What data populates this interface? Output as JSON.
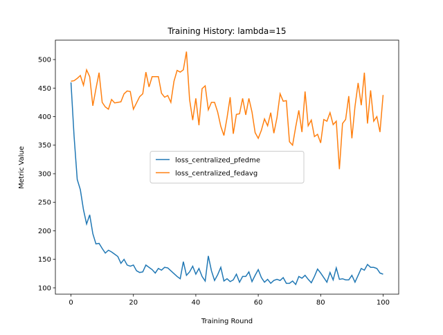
{
  "chart_data": {
    "type": "line",
    "title": "Training History: lambda=15",
    "x_label": "Training Round",
    "y_label": "Metric Value",
    "x": [
      0,
      1,
      2,
      3,
      4,
      5,
      6,
      7,
      8,
      9,
      10,
      11,
      12,
      13,
      14,
      15,
      16,
      17,
      18,
      19,
      20,
      21,
      22,
      23,
      24,
      25,
      26,
      27,
      28,
      29,
      30,
      31,
      32,
      33,
      34,
      35,
      36,
      37,
      38,
      39,
      40,
      41,
      42,
      43,
      44,
      45,
      46,
      47,
      48,
      49,
      50,
      51,
      52,
      53,
      54,
      55,
      56,
      57,
      58,
      59,
      60,
      61,
      62,
      63,
      64,
      65,
      66,
      67,
      68,
      69,
      70,
      71,
      72,
      73,
      74,
      75,
      76,
      77,
      78,
      79,
      80,
      81,
      82,
      83,
      84,
      85,
      86,
      87,
      88,
      89,
      90,
      91,
      92,
      93,
      94,
      95,
      96,
      97,
      98,
      99,
      100
    ],
    "series": [
      {
        "name": "loss_centralized_pfedme",
        "color": "#1f77b4",
        "values": [
          460,
          365,
          290,
          272,
          237,
          212,
          228,
          195,
          177,
          178,
          169,
          161,
          166,
          163,
          159,
          155,
          143,
          150,
          140,
          138,
          140,
          130,
          127,
          128,
          140,
          136,
          132,
          126,
          134,
          131,
          136,
          135,
          130,
          125,
          120,
          116,
          146,
          122,
          128,
          138,
          124,
          134,
          120,
          112,
          156,
          130,
          113,
          123,
          136,
          112,
          116,
          111,
          114,
          124,
          110,
          120,
          120,
          128,
          111,
          122,
          132,
          118,
          110,
          115,
          108,
          113,
          115,
          113,
          118,
          108,
          108,
          112,
          106,
          120,
          117,
          122,
          115,
          109,
          120,
          133,
          126,
          118,
          110,
          127,
          114,
          135,
          115,
          116,
          114,
          114,
          122,
          110,
          122,
          134,
          131,
          141,
          136,
          136,
          134,
          126,
          124
        ]
      },
      {
        "name": "loss_centralized_fedavg",
        "color": "#ff7f0e",
        "values": [
          462,
          463,
          467,
          472,
          455,
          482,
          470,
          419,
          449,
          477,
          425,
          417,
          413,
          430,
          424,
          425,
          426,
          440,
          445,
          444,
          413,
          424,
          435,
          440,
          478,
          452,
          470,
          470,
          470,
          441,
          434,
          437,
          425,
          462,
          481,
          478,
          482,
          514,
          430,
          394,
          432,
          385,
          449,
          454,
          412,
          425,
          425,
          408,
          383,
          367,
          398,
          434,
          370,
          404,
          405,
          432,
          403,
          432,
          408,
          372,
          362,
          376,
          396,
          384,
          407,
          371,
          398,
          440,
          427,
          428,
          356,
          350,
          382,
          411,
          373,
          444,
          384,
          394,
          365,
          369,
          354,
          395,
          392,
          407,
          386,
          392,
          308,
          388,
          395,
          436,
          362,
          418,
          459,
          420,
          477,
          388,
          446,
          392,
          400,
          373,
          438
        ]
      }
    ],
    "xlim": [
      -5,
      105
    ],
    "ylim": [
      89,
      534
    ],
    "xticks": [
      0,
      20,
      40,
      60,
      80,
      100
    ],
    "yticks": [
      100,
      150,
      200,
      250,
      300,
      350,
      400,
      450,
      500
    ],
    "legend": "center"
  }
}
